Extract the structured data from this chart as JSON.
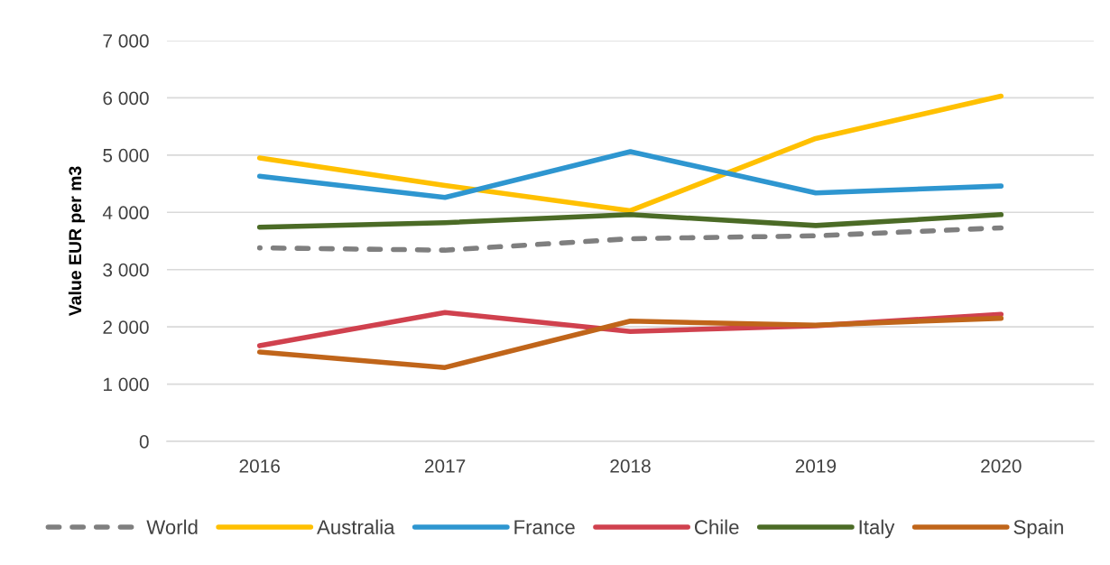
{
  "chart_data": {
    "type": "line",
    "ylabel": "Value EUR per m3",
    "categories": [
      "2016",
      "2017",
      "2018",
      "2019",
      "2020"
    ],
    "series": [
      {
        "name": "World",
        "color": "#7f7f7f",
        "line_style": "dashed",
        "values": [
          3380,
          3340,
          3540,
          3590,
          3730
        ]
      },
      {
        "name": "Australia",
        "color": "#ffc000",
        "values": [
          4950,
          4470,
          4030,
          5290,
          6030
        ]
      },
      {
        "name": "France",
        "color": "#2e96d0",
        "values": [
          4630,
          4260,
          5060,
          4340,
          4460
        ]
      },
      {
        "name": "Chile",
        "color": "#d0414e",
        "values": [
          1670,
          2250,
          1920,
          2020,
          2220
        ]
      },
      {
        "name": "Italy",
        "color": "#4b6b26",
        "values": [
          3740,
          3820,
          3960,
          3770,
          3960
        ]
      },
      {
        "name": "Spain",
        "color": "#c0651a",
        "values": [
          1560,
          1290,
          2100,
          2030,
          2150
        ]
      }
    ],
    "ylim": [
      0,
      7000
    ],
    "yticks": [
      {
        "value": 0,
        "label": "0"
      },
      {
        "value": 1000,
        "label": "1 000"
      },
      {
        "value": 2000,
        "label": "2 000"
      },
      {
        "value": 3000,
        "label": "3 000"
      },
      {
        "value": 4000,
        "label": "4 000"
      },
      {
        "value": 5000,
        "label": "5 000"
      },
      {
        "value": 6000,
        "label": "6 000"
      },
      {
        "value": 7000,
        "label": "7 000"
      }
    ],
    "grid": "y",
    "legend": "bottom"
  }
}
